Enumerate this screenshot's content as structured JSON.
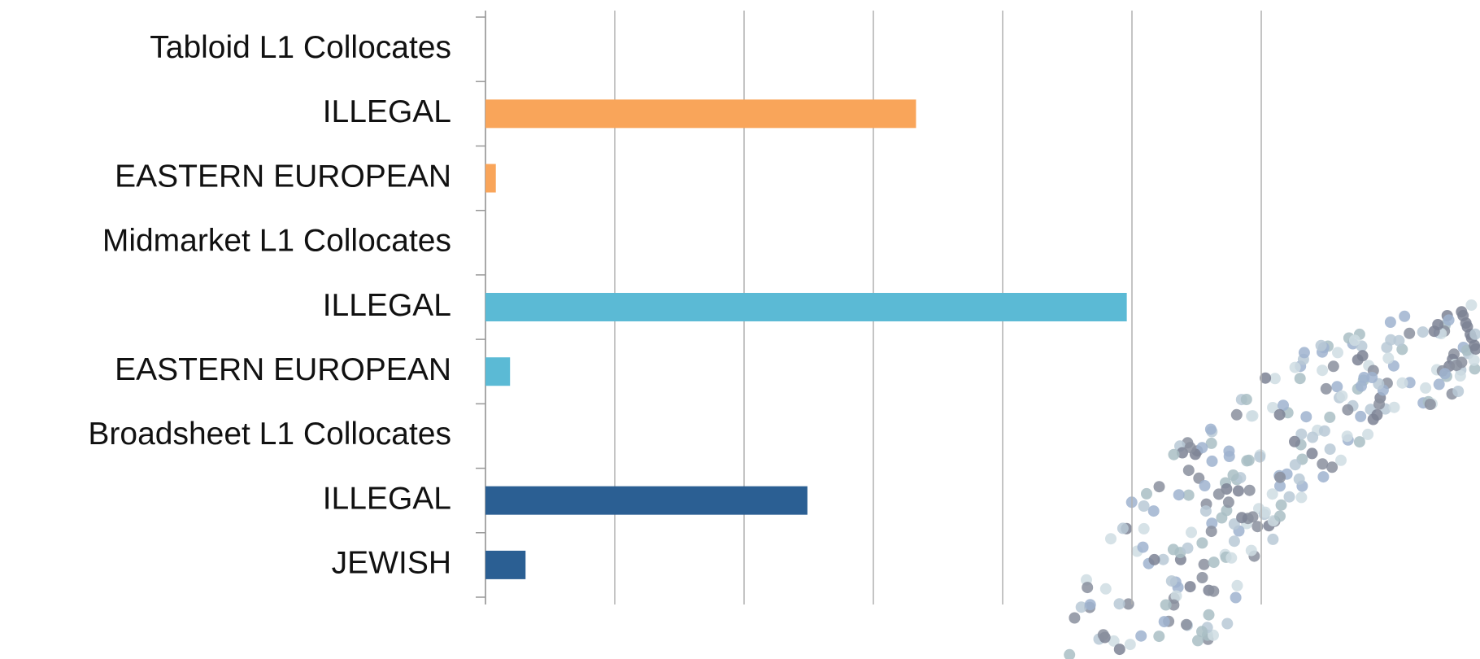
{
  "chart_data": {
    "type": "hbar",
    "categories": [
      "Tabloid L1 Collocates",
      "ILLEGAL",
      "EASTERN EUROPEAN",
      "Midmarket L1 Collocates",
      "ILLEGAL",
      "EASTERN EUROPEAN",
      "Broadsheet L1 Collocates",
      "ILLEGAL",
      "JEWISH"
    ],
    "values": [
      null,
      3.33,
      0.08,
      null,
      4.96,
      0.19,
      null,
      2.49,
      0.31
    ],
    "colors": [
      null,
      "#f9a55a",
      "#f9a55a",
      null,
      "#5bbad5",
      "#5bbad5",
      null,
      "#2b5f93",
      "#2b5f93"
    ],
    "xlim": [
      0,
      6
    ],
    "xticks": [
      0,
      1,
      2,
      3,
      4,
      5,
      6
    ],
    "grid": true
  }
}
